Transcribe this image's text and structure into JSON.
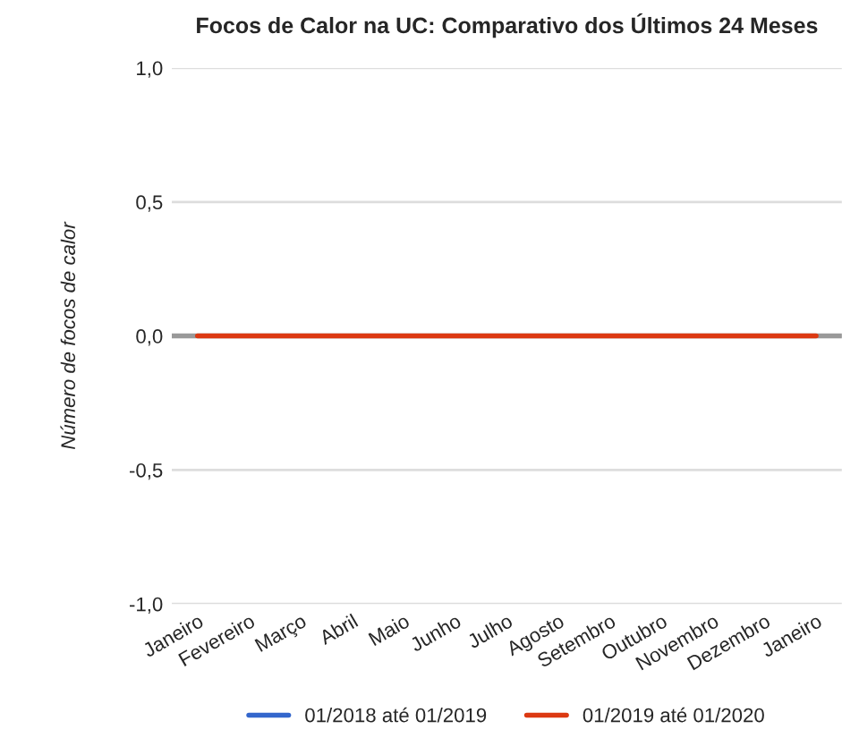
{
  "chart_data": {
    "type": "line",
    "title": "Focos de Calor na UC: Comparativo dos Últimos 24 Meses",
    "ylabel": "Número de focos de calor",
    "categories": [
      "Janeiro",
      "Fevereiro",
      "Março",
      "Abril",
      "Maio",
      "Junho",
      "Julho",
      "Agosto",
      "Setembro",
      "Outubro",
      "Novembro",
      "Dezembro",
      "Janeiro"
    ],
    "series": [
      {
        "name": "01/2018 até 01/2019",
        "color": "#3366cc",
        "values": [
          null,
          null,
          null,
          null,
          null,
          null,
          null,
          null,
          null,
          null,
          null,
          null,
          null
        ]
      },
      {
        "name": "01/2019 até 01/2020",
        "color": "#dc3912",
        "values": [
          0,
          0,
          0,
          0,
          0,
          0,
          0,
          0,
          0,
          0,
          0,
          0,
          0
        ]
      }
    ],
    "ylim": [
      -1,
      1
    ],
    "yticks": [
      {
        "value": 1,
        "label": "1,0"
      },
      {
        "value": 0.5,
        "label": "0,5"
      },
      {
        "value": 0,
        "label": "0,0"
      },
      {
        "value": -0.5,
        "label": "-0,5"
      },
      {
        "value": -1,
        "label": "-1,0"
      }
    ],
    "ref_lines": [
      {
        "axis": "y",
        "value": 0,
        "color": "#999999"
      }
    ],
    "grid": "y",
    "legend": "bottom",
    "marker": "none",
    "line_style": "solid"
  }
}
